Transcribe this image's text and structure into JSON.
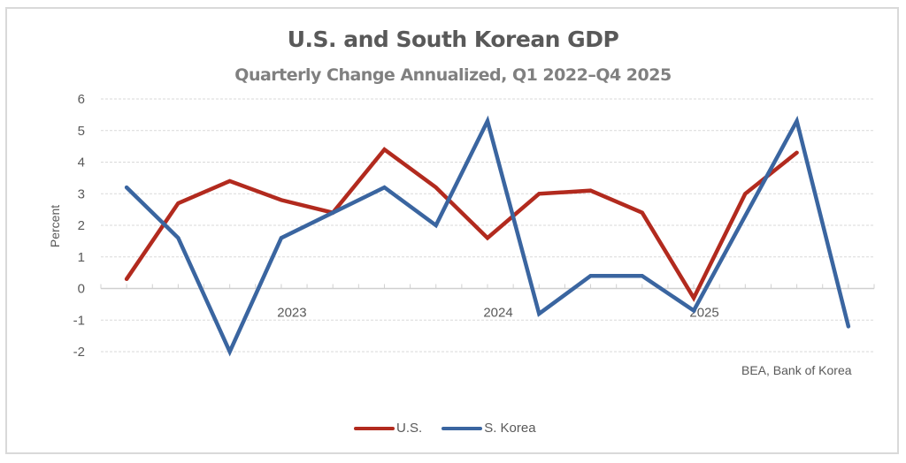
{
  "chart_data": {
    "type": "line",
    "title": "U.S. and South Korean GDP",
    "subtitle": "Quarterly Change Annualized, Q1 2022–Q4 2025",
    "xlabel": "",
    "ylabel": "Percent",
    "ylim": [
      -2,
      6
    ],
    "yticks": [
      "6",
      "5",
      "4",
      "3",
      "2",
      "1",
      "0",
      "-1",
      "-2"
    ],
    "ytick_values": [
      6,
      5,
      4,
      3,
      2,
      1,
      0,
      -1,
      -2
    ],
    "grid": true,
    "x_count": 15,
    "x_tick_labels": [
      {
        "index": 3,
        "label": "2023"
      },
      {
        "index": 7,
        "label": "2024"
      },
      {
        "index": 11,
        "label": "2025"
      }
    ],
    "series": [
      {
        "name": "U.S.",
        "color": "#b22a1e",
        "values": [
          0.3,
          2.7,
          3.4,
          2.8,
          2.4,
          4.4,
          3.2,
          1.6,
          3.0,
          3.1,
          2.4,
          -0.3,
          3.0,
          4.3,
          null
        ]
      },
      {
        "name": "S. Korea",
        "color": "#3a65a0",
        "values": [
          3.2,
          1.6,
          -2.0,
          1.6,
          2.4,
          3.2,
          2.0,
          5.3,
          -0.8,
          0.4,
          0.4,
          -0.7,
          2.3,
          5.3,
          -1.2
        ]
      }
    ],
    "legend_position": "bottom",
    "source": "BEA,  Bank of Korea"
  }
}
